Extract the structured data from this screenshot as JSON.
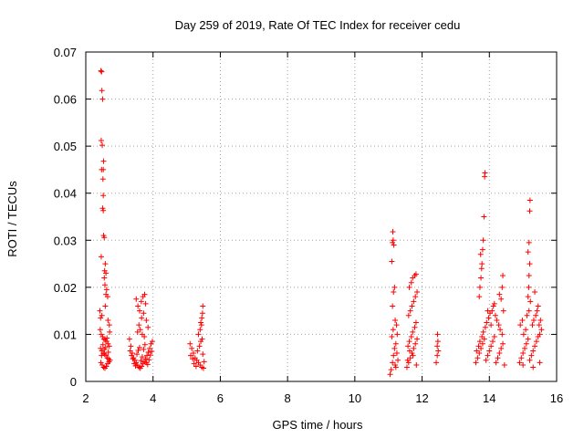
{
  "chart_data": {
    "type": "scatter",
    "title": "Day 259 of 2019, Rate Of TEC Index for receiver cedu",
    "xlabel": "GPS time / hours",
    "ylabel": "ROTI / TECUs",
    "xlim": [
      2,
      16
    ],
    "ylim": [
      0,
      0.07
    ],
    "grid": true,
    "marker": "+",
    "color": "#ff0000",
    "x_ticks": [
      "2",
      "4",
      "6",
      "8",
      "10",
      "12",
      "14",
      "16"
    ],
    "y_ticks": [
      "0",
      "0.01",
      "0.02",
      "0.03",
      "0.04",
      "0.05",
      "0.06",
      "0.07"
    ],
    "series": [
      {
        "name": "ROTI",
        "points": [
          [
            2.45,
            0.066
          ],
          [
            2.47,
            0.0658
          ],
          [
            2.48,
            0.0618
          ],
          [
            2.5,
            0.06
          ],
          [
            2.46,
            0.0512
          ],
          [
            2.49,
            0.0502
          ],
          [
            2.47,
            0.045
          ],
          [
            2.52,
            0.045
          ],
          [
            2.53,
            0.0468
          ],
          [
            2.51,
            0.043
          ],
          [
            2.52,
            0.0395
          ],
          [
            2.5,
            0.0368
          ],
          [
            2.52,
            0.0363
          ],
          [
            2.53,
            0.031
          ],
          [
            2.55,
            0.0306
          ],
          [
            2.46,
            0.0265
          ],
          [
            2.58,
            0.025
          ],
          [
            2.56,
            0.0235
          ],
          [
            2.6,
            0.023
          ],
          [
            2.55,
            0.022
          ],
          [
            2.57,
            0.0205
          ],
          [
            2.62,
            0.0195
          ],
          [
            2.6,
            0.0185
          ],
          [
            2.65,
            0.018
          ],
          [
            2.42,
            0.015
          ],
          [
            2.44,
            0.0135
          ],
          [
            2.48,
            0.014
          ],
          [
            2.58,
            0.016
          ],
          [
            2.66,
            0.013
          ],
          [
            2.7,
            0.012
          ],
          [
            2.43,
            0.011
          ],
          [
            2.46,
            0.01
          ],
          [
            2.5,
            0.0095
          ],
          [
            2.54,
            0.009
          ],
          [
            2.58,
            0.0088
          ],
          [
            2.62,
            0.0085
          ],
          [
            2.66,
            0.008
          ],
          [
            2.7,
            0.0075
          ],
          [
            2.44,
            0.007
          ],
          [
            2.48,
            0.0065
          ],
          [
            2.52,
            0.006
          ],
          [
            2.56,
            0.0058
          ],
          [
            2.6,
            0.0055
          ],
          [
            2.64,
            0.005
          ],
          [
            2.68,
            0.0048
          ],
          [
            2.72,
            0.0045
          ],
          [
            2.45,
            0.004
          ],
          [
            2.49,
            0.0035
          ],
          [
            2.53,
            0.003
          ],
          [
            2.57,
            0.0028
          ],
          [
            2.61,
            0.0032
          ],
          [
            2.65,
            0.0038
          ],
          [
            2.69,
            0.0042
          ],
          [
            2.47,
            0.0055
          ],
          [
            2.51,
            0.0078
          ],
          [
            2.55,
            0.0068
          ],
          [
            2.59,
            0.0072
          ],
          [
            2.63,
            0.0092
          ],
          [
            2.67,
            0.0062
          ],
          [
            2.71,
            0.0105
          ],
          [
            3.3,
            0.009
          ],
          [
            3.34,
            0.0075
          ],
          [
            3.38,
            0.006
          ],
          [
            3.42,
            0.005
          ],
          [
            3.46,
            0.0045
          ],
          [
            3.5,
            0.004
          ],
          [
            3.54,
            0.0035
          ],
          [
            3.58,
            0.003
          ],
          [
            3.62,
            0.0028
          ],
          [
            3.66,
            0.0032
          ],
          [
            3.7,
            0.0038
          ],
          [
            3.74,
            0.0042
          ],
          [
            3.78,
            0.0048
          ],
          [
            3.82,
            0.0055
          ],
          [
            3.86,
            0.0062
          ],
          [
            3.9,
            0.007
          ],
          [
            3.94,
            0.008
          ],
          [
            3.98,
            0.0085
          ],
          [
            3.32,
            0.0065
          ],
          [
            3.36,
            0.0055
          ],
          [
            3.4,
            0.0048
          ],
          [
            3.44,
            0.0038
          ],
          [
            3.48,
            0.0033
          ],
          [
            3.52,
            0.0058
          ],
          [
            3.56,
            0.0066
          ],
          [
            3.6,
            0.0072
          ],
          [
            3.64,
            0.0044
          ],
          [
            3.68,
            0.0052
          ],
          [
            3.72,
            0.0068
          ],
          [
            3.76,
            0.0078
          ],
          [
            3.8,
            0.004
          ],
          [
            3.84,
            0.0036
          ],
          [
            3.88,
            0.0046
          ],
          [
            3.92,
            0.0056
          ],
          [
            3.96,
            0.0064
          ],
          [
            3.5,
            0.0175
          ],
          [
            3.55,
            0.016
          ],
          [
            3.6,
            0.015
          ],
          [
            3.65,
            0.017
          ],
          [
            3.7,
            0.018
          ],
          [
            3.75,
            0.0185
          ],
          [
            3.78,
            0.0165
          ],
          [
            3.72,
            0.0145
          ],
          [
            3.66,
            0.0135
          ],
          [
            3.58,
            0.012
          ],
          [
            3.62,
            0.011
          ],
          [
            3.68,
            0.01
          ],
          [
            3.74,
            0.0095
          ],
          [
            3.8,
            0.013
          ],
          [
            3.85,
            0.0115
          ],
          [
            3.54,
            0.0105
          ],
          [
            5.1,
            0.008
          ],
          [
            5.15,
            0.007
          ],
          [
            5.2,
            0.006
          ],
          [
            5.25,
            0.005
          ],
          [
            5.3,
            0.0045
          ],
          [
            5.35,
            0.004
          ],
          [
            5.4,
            0.0035
          ],
          [
            5.45,
            0.003
          ],
          [
            5.5,
            0.0028
          ],
          [
            5.12,
            0.0055
          ],
          [
            5.18,
            0.0048
          ],
          [
            5.22,
            0.0038
          ],
          [
            5.28,
            0.0032
          ],
          [
            5.32,
            0.0065
          ],
          [
            5.38,
            0.0075
          ],
          [
            5.42,
            0.0085
          ],
          [
            5.48,
            0.0058
          ],
          [
            5.52,
            0.0042
          ],
          [
            5.35,
            0.01
          ],
          [
            5.4,
            0.011
          ],
          [
            5.42,
            0.0125
          ],
          [
            5.45,
            0.0135
          ],
          [
            5.47,
            0.0145
          ],
          [
            5.48,
            0.016
          ],
          [
            5.44,
            0.012
          ],
          [
            5.46,
            0.009
          ],
          [
            11.05,
            0.0015
          ],
          [
            11.08,
            0.0025
          ],
          [
            11.12,
            0.004
          ],
          [
            11.15,
            0.0055
          ],
          [
            11.18,
            0.007
          ],
          [
            11.22,
            0.008
          ],
          [
            11.25,
            0.006
          ],
          [
            11.28,
            0.0045
          ],
          [
            11.1,
            0.0095
          ],
          [
            11.14,
            0.011
          ],
          [
            11.2,
            0.013
          ],
          [
            11.24,
            0.012
          ],
          [
            11.26,
            0.01
          ],
          [
            11.12,
            0.016
          ],
          [
            11.15,
            0.019
          ],
          [
            11.18,
            0.02
          ],
          [
            11.1,
            0.0255
          ],
          [
            11.12,
            0.0295
          ],
          [
            11.14,
            0.03
          ],
          [
            11.16,
            0.029
          ],
          [
            11.13,
            0.0318
          ],
          [
            11.2,
            0.0035
          ],
          [
            11.22,
            0.003
          ],
          [
            11.55,
            0.003
          ],
          [
            11.6,
            0.004
          ],
          [
            11.65,
            0.005
          ],
          [
            11.7,
            0.006
          ],
          [
            11.75,
            0.007
          ],
          [
            11.8,
            0.008
          ],
          [
            11.85,
            0.009
          ],
          [
            11.58,
            0.0075
          ],
          [
            11.62,
            0.0085
          ],
          [
            11.68,
            0.0095
          ],
          [
            11.72,
            0.0105
          ],
          [
            11.78,
            0.0115
          ],
          [
            11.82,
            0.0125
          ],
          [
            11.6,
            0.014
          ],
          [
            11.65,
            0.015
          ],
          [
            11.7,
            0.016
          ],
          [
            11.75,
            0.017
          ],
          [
            11.8,
            0.018
          ],
          [
            11.85,
            0.019
          ],
          [
            11.62,
            0.02
          ],
          [
            11.68,
            0.021
          ],
          [
            11.72,
            0.022
          ],
          [
            11.78,
            0.0225
          ],
          [
            11.82,
            0.0228
          ],
          [
            11.57,
            0.0045
          ],
          [
            11.63,
            0.0065
          ],
          [
            11.73,
            0.0055
          ],
          [
            11.83,
            0.0035
          ],
          [
            12.42,
            0.004
          ],
          [
            12.45,
            0.0055
          ],
          [
            12.48,
            0.0065
          ],
          [
            12.45,
            0.0075
          ],
          [
            12.47,
            0.0085
          ],
          [
            12.46,
            0.01
          ],
          [
            13.6,
            0.004
          ],
          [
            13.65,
            0.005
          ],
          [
            13.7,
            0.006
          ],
          [
            13.75,
            0.007
          ],
          [
            13.8,
            0.008
          ],
          [
            13.85,
            0.009
          ],
          [
            13.9,
            0.0045
          ],
          [
            13.95,
            0.0055
          ],
          [
            14.0,
            0.0065
          ],
          [
            14.05,
            0.0075
          ],
          [
            14.1,
            0.0085
          ],
          [
            14.15,
            0.0095
          ],
          [
            14.2,
            0.004
          ],
          [
            14.25,
            0.005
          ],
          [
            14.3,
            0.006
          ],
          [
            14.35,
            0.007
          ],
          [
            14.4,
            0.008
          ],
          [
            14.45,
            0.0035
          ],
          [
            13.62,
            0.0065
          ],
          [
            13.68,
            0.0075
          ],
          [
            13.72,
            0.0085
          ],
          [
            13.78,
            0.0095
          ],
          [
            13.82,
            0.0105
          ],
          [
            13.88,
            0.0115
          ],
          [
            13.92,
            0.0125
          ],
          [
            13.98,
            0.0135
          ],
          [
            14.02,
            0.0145
          ],
          [
            14.08,
            0.015
          ],
          [
            14.12,
            0.016
          ],
          [
            14.18,
            0.014
          ],
          [
            14.22,
            0.013
          ],
          [
            14.28,
            0.012
          ],
          [
            14.32,
            0.011
          ],
          [
            14.38,
            0.01
          ],
          [
            14.42,
            0.015
          ],
          [
            14.35,
            0.0175
          ],
          [
            14.38,
            0.02
          ],
          [
            14.4,
            0.0225
          ],
          [
            14.3,
            0.0185
          ],
          [
            13.7,
            0.018
          ],
          [
            13.72,
            0.02
          ],
          [
            13.75,
            0.022
          ],
          [
            13.78,
            0.025
          ],
          [
            13.8,
            0.028
          ],
          [
            13.82,
            0.03
          ],
          [
            13.74,
            0.027
          ],
          [
            13.77,
            0.024
          ],
          [
            13.84,
            0.035
          ],
          [
            13.86,
            0.0435
          ],
          [
            13.87,
            0.0443
          ],
          [
            13.95,
            0.015
          ],
          [
            14.05,
            0.012
          ],
          [
            14.15,
            0.0165
          ],
          [
            14.9,
            0.004
          ],
          [
            14.95,
            0.005
          ],
          [
            15.0,
            0.006
          ],
          [
            15.05,
            0.007
          ],
          [
            15.1,
            0.008
          ],
          [
            15.15,
            0.009
          ],
          [
            15.2,
            0.0045
          ],
          [
            15.25,
            0.0055
          ],
          [
            15.3,
            0.0065
          ],
          [
            15.35,
            0.0075
          ],
          [
            15.4,
            0.0085
          ],
          [
            15.45,
            0.0095
          ],
          [
            15.5,
            0.01
          ],
          [
            15.55,
            0.011
          ],
          [
            14.92,
            0.012
          ],
          [
            14.98,
            0.013
          ],
          [
            15.02,
            0.01
          ],
          [
            15.08,
            0.011
          ],
          [
            15.12,
            0.014
          ],
          [
            15.18,
            0.015
          ],
          [
            15.22,
            0.017
          ],
          [
            15.28,
            0.012
          ],
          [
            15.32,
            0.013
          ],
          [
            15.38,
            0.014
          ],
          [
            15.42,
            0.015
          ],
          [
            15.48,
            0.012
          ],
          [
            15.52,
            0.013
          ],
          [
            15.15,
            0.018
          ],
          [
            15.17,
            0.02
          ],
          [
            15.18,
            0.0225
          ],
          [
            15.2,
            0.025
          ],
          [
            15.15,
            0.0275
          ],
          [
            15.18,
            0.0295
          ],
          [
            15.2,
            0.0362
          ],
          [
            15.21,
            0.0385
          ],
          [
            15.35,
            0.019
          ],
          [
            15.45,
            0.016
          ],
          [
            15.0,
            0.0035
          ],
          [
            15.3,
            0.003
          ],
          [
            15.5,
            0.004
          ]
        ]
      }
    ]
  }
}
